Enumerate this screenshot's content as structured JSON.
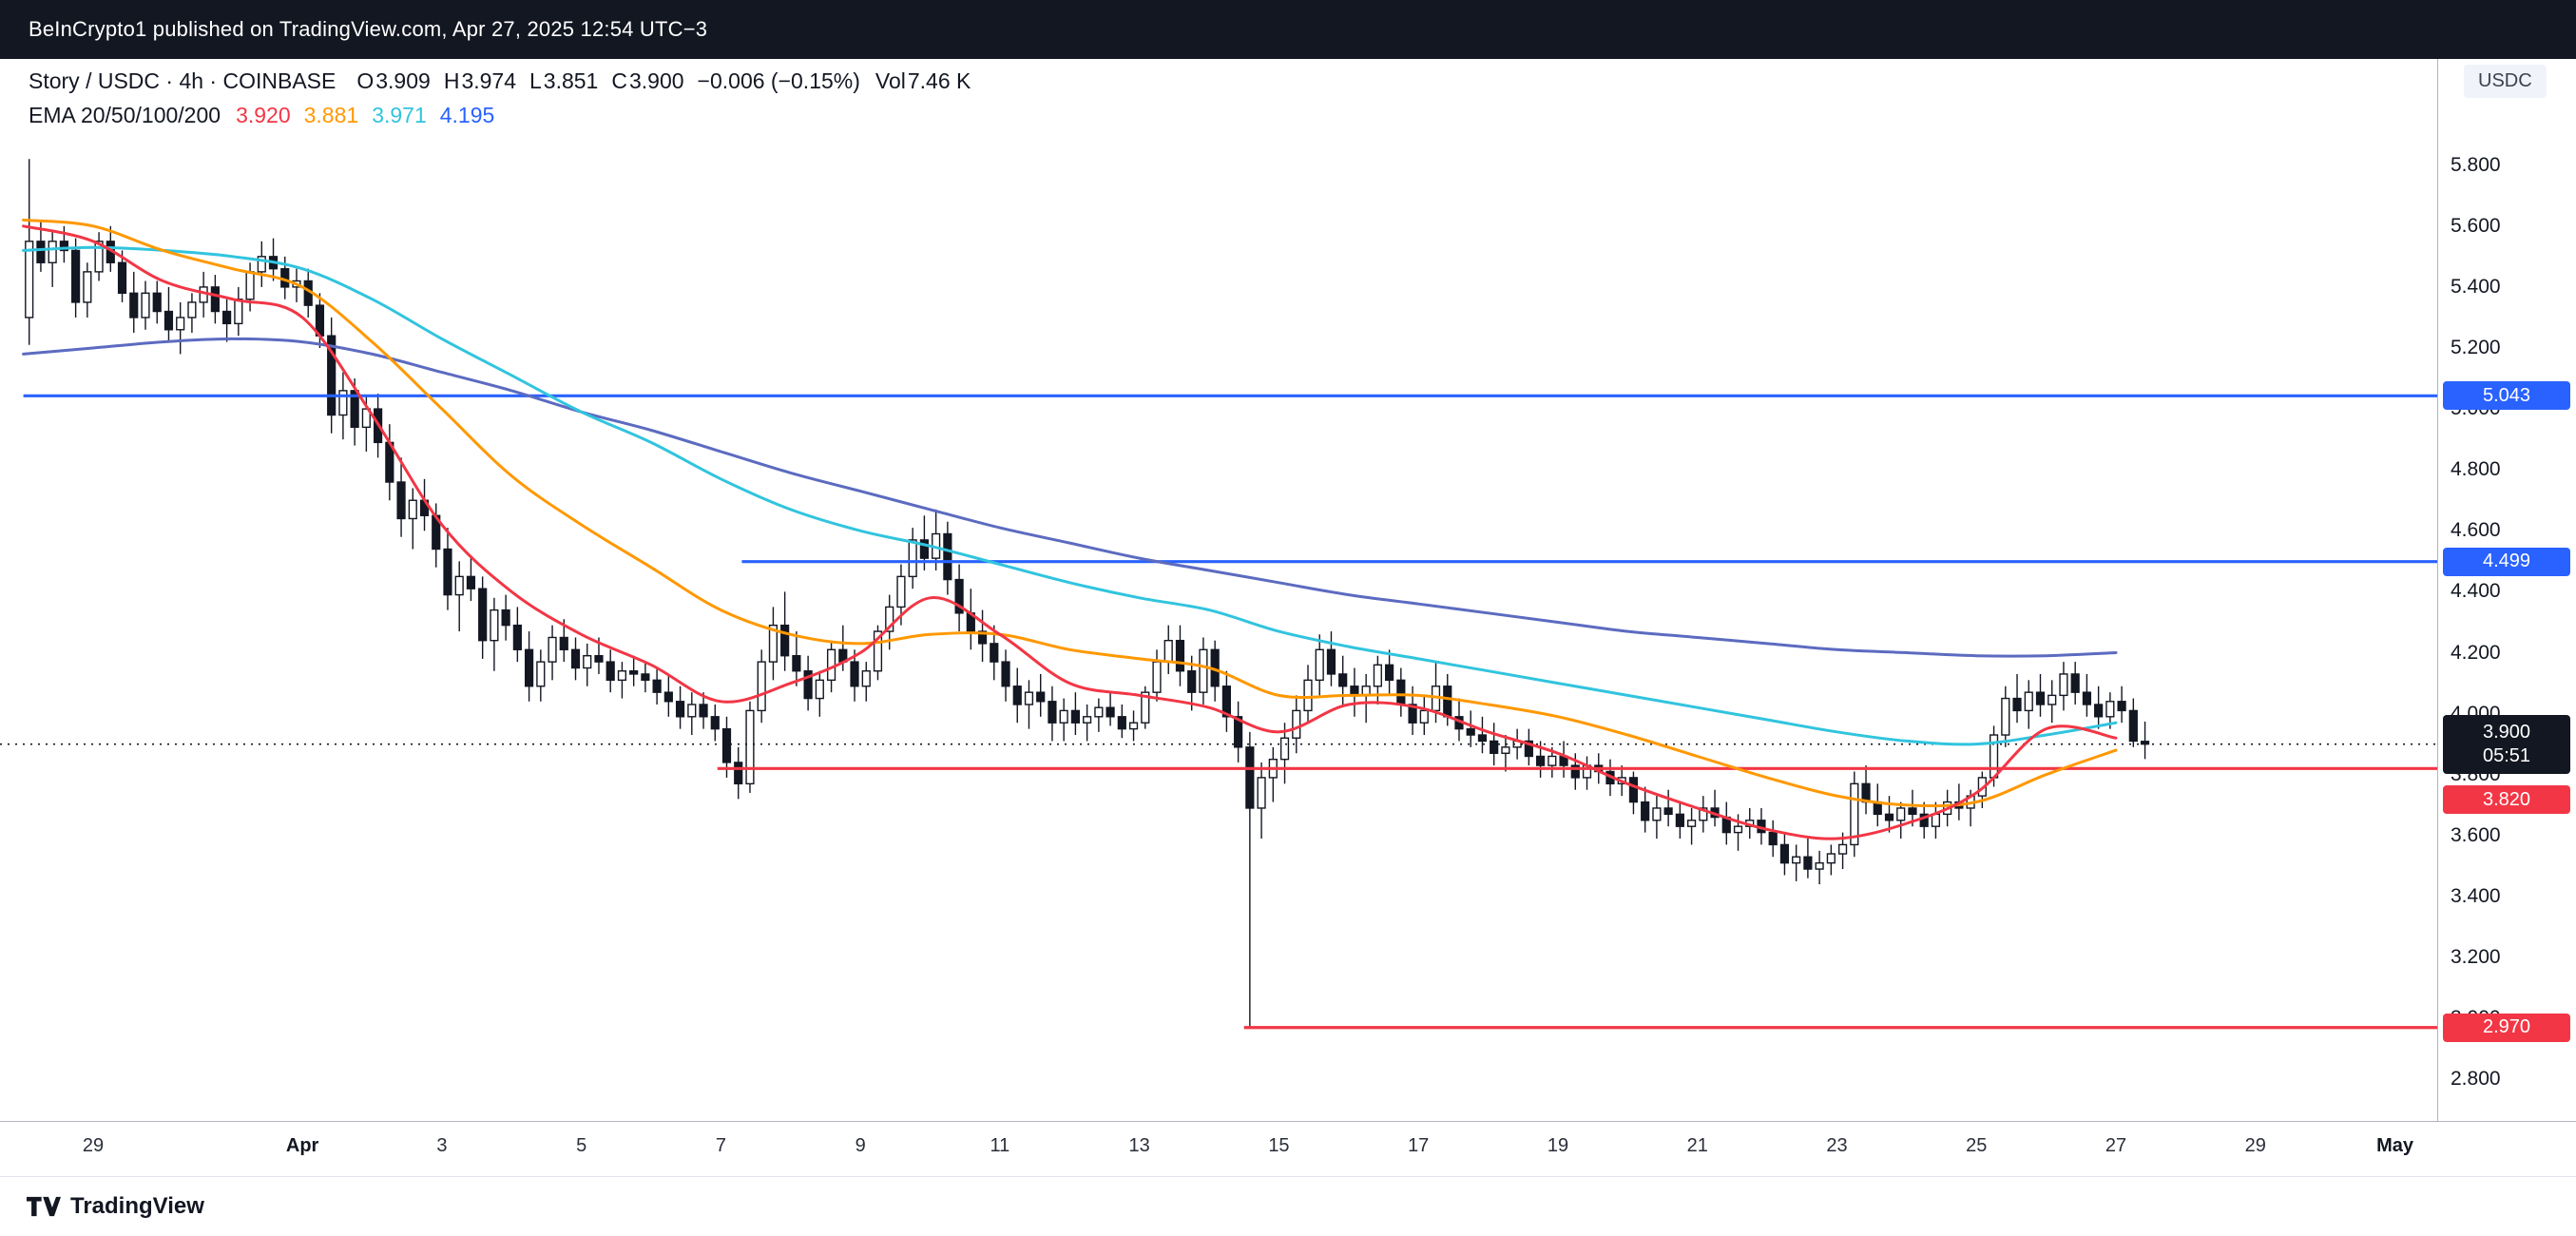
{
  "header": {
    "text": "BeInCrypto1 published on TradingView.com, Apr 27, 2025 12:54 UTC−3"
  },
  "legend": {
    "symbol": "Story / USDC · 4h · COINBASE",
    "open_label": "O",
    "open": "3.909",
    "high_label": "H",
    "high": "3.974",
    "low_label": "L",
    "low": "3.851",
    "close_label": "C",
    "close": "3.900",
    "change": "−0.006 (−0.15%)",
    "volume_label": "Vol",
    "volume": "7.46 K",
    "ema_label": "EMA 20/50/100/200",
    "ema_values": [
      {
        "text": "3.920",
        "color": "#F23645"
      },
      {
        "text": "3.881",
        "color": "#FF9800"
      },
      {
        "text": "3.971",
        "color": "#31C4DE"
      },
      {
        "text": "4.195",
        "color": "#2962FF"
      }
    ]
  },
  "currency_chip": "USDC",
  "price_axis": {
    "ticks": [
      "5.800",
      "5.600",
      "5.400",
      "5.200",
      "5.000",
      "4.800",
      "4.600",
      "4.400",
      "4.200",
      "4.000",
      "3.800",
      "3.600",
      "3.400",
      "3.200",
      "3.000",
      "2.800"
    ],
    "badges": [
      {
        "text": "5.043",
        "price": 5.043,
        "bg": "#2962FF"
      },
      {
        "text": "4.499",
        "price": 4.499,
        "bg": "#2962FF"
      },
      {
        "text": "3.900",
        "price": 3.9,
        "bg": "#131722",
        "countdown": "05:51"
      },
      {
        "text": "3.820",
        "price": 3.82,
        "bg": "#F23645",
        "shift": 33
      },
      {
        "text": "2.970",
        "price": 2.97,
        "bg": "#F23645"
      }
    ]
  },
  "time_axis": {
    "labels": [
      {
        "text": "29",
        "day": 1
      },
      {
        "text": "Apr",
        "day": 4,
        "bold": true
      },
      {
        "text": "3",
        "day": 6
      },
      {
        "text": "5",
        "day": 8
      },
      {
        "text": "7",
        "day": 10
      },
      {
        "text": "9",
        "day": 12
      },
      {
        "text": "11",
        "day": 14
      },
      {
        "text": "13",
        "day": 16
      },
      {
        "text": "15",
        "day": 18
      },
      {
        "text": "17",
        "day": 20
      },
      {
        "text": "19",
        "day": 22
      },
      {
        "text": "21",
        "day": 24
      },
      {
        "text": "23",
        "day": 26
      },
      {
        "text": "25",
        "day": 28
      },
      {
        "text": "27",
        "day": 30
      },
      {
        "text": "29",
        "day": 32
      },
      {
        "text": "May",
        "day": 34,
        "bold": true
      }
    ]
  },
  "footer": {
    "brand": "TradingView"
  },
  "chart_data": {
    "type": "candlestick",
    "symbol": "Story / USDC",
    "exchange": "COINBASE",
    "interval": "4h",
    "ylim": [
      2.8,
      5.8
    ],
    "start": "Mar 28 00:00",
    "interval_hours": 4,
    "current": {
      "open": 3.909,
      "high": 3.974,
      "low": 3.851,
      "close": 3.9,
      "change": -0.006,
      "change_pct": -0.15,
      "volume": "7.46 K",
      "countdown": "05:51"
    },
    "up_color": "#FFFFFF",
    "down_color": "#131722",
    "candles": [
      [
        5.3,
        5.82,
        5.21,
        5.55
      ],
      [
        5.55,
        5.62,
        5.45,
        5.48
      ],
      [
        5.48,
        5.58,
        5.4,
        5.55
      ],
      [
        5.55,
        5.6,
        5.48,
        5.52
      ],
      [
        5.52,
        5.56,
        5.3,
        5.35
      ],
      [
        5.35,
        5.48,
        5.3,
        5.45
      ],
      [
        5.45,
        5.58,
        5.42,
        5.55
      ],
      [
        5.55,
        5.6,
        5.45,
        5.48
      ],
      [
        5.48,
        5.52,
        5.35,
        5.38
      ],
      [
        5.38,
        5.45,
        5.25,
        5.3
      ],
      [
        5.3,
        5.42,
        5.26,
        5.38
      ],
      [
        5.38,
        5.42,
        5.28,
        5.32
      ],
      [
        5.32,
        5.4,
        5.22,
        5.26
      ],
      [
        5.26,
        5.35,
        5.18,
        5.3
      ],
      [
        5.3,
        5.38,
        5.25,
        5.35
      ],
      [
        5.35,
        5.45,
        5.3,
        5.4
      ],
      [
        5.4,
        5.44,
        5.28,
        5.32
      ],
      [
        5.32,
        5.36,
        5.22,
        5.28
      ],
      [
        5.28,
        5.4,
        5.24,
        5.36
      ],
      [
        5.36,
        5.48,
        5.32,
        5.45
      ],
      [
        5.45,
        5.55,
        5.4,
        5.5
      ],
      [
        5.5,
        5.56,
        5.42,
        5.46
      ],
      [
        5.46,
        5.5,
        5.36,
        5.4
      ],
      [
        5.4,
        5.46,
        5.35,
        5.42
      ],
      [
        5.42,
        5.46,
        5.3,
        5.34
      ],
      [
        5.34,
        5.38,
        5.2,
        5.24
      ],
      [
        5.24,
        5.3,
        4.92,
        4.98
      ],
      [
        4.98,
        5.12,
        4.9,
        5.06
      ],
      [
        5.06,
        5.1,
        4.88,
        4.94
      ],
      [
        4.94,
        5.04,
        4.86,
        5.0
      ],
      [
        5.0,
        5.05,
        4.84,
        4.89
      ],
      [
        4.89,
        4.95,
        4.7,
        4.76
      ],
      [
        4.76,
        4.84,
        4.58,
        4.64
      ],
      [
        4.64,
        4.74,
        4.54,
        4.7
      ],
      [
        4.7,
        4.77,
        4.6,
        4.65
      ],
      [
        4.65,
        4.69,
        4.48,
        4.54
      ],
      [
        4.54,
        4.61,
        4.34,
        4.39
      ],
      [
        4.39,
        4.5,
        4.27,
        4.45
      ],
      [
        4.45,
        4.52,
        4.37,
        4.41
      ],
      [
        4.41,
        4.45,
        4.18,
        4.24
      ],
      [
        4.24,
        4.38,
        4.14,
        4.34
      ],
      [
        4.34,
        4.39,
        4.24,
        4.29
      ],
      [
        4.29,
        4.35,
        4.17,
        4.21
      ],
      [
        4.21,
        4.27,
        4.04,
        4.09
      ],
      [
        4.09,
        4.21,
        4.04,
        4.17
      ],
      [
        4.17,
        4.29,
        4.11,
        4.25
      ],
      [
        4.25,
        4.31,
        4.17,
        4.21
      ],
      [
        4.21,
        4.25,
        4.11,
        4.15
      ],
      [
        4.15,
        4.23,
        4.09,
        4.19
      ],
      [
        4.19,
        4.25,
        4.13,
        4.17
      ],
      [
        4.17,
        4.21,
        4.07,
        4.11
      ],
      [
        4.11,
        4.17,
        4.05,
        4.14
      ],
      [
        4.14,
        4.19,
        4.09,
        4.13
      ],
      [
        4.13,
        4.17,
        4.07,
        4.11
      ],
      [
        4.11,
        4.15,
        4.03,
        4.07
      ],
      [
        4.07,
        4.13,
        3.99,
        4.04
      ],
      [
        4.04,
        4.09,
        3.95,
        3.99
      ],
      [
        3.99,
        4.07,
        3.93,
        4.03
      ],
      [
        4.03,
        4.07,
        3.95,
        3.99
      ],
      [
        3.99,
        4.03,
        3.91,
        3.95
      ],
      [
        3.95,
        3.99,
        3.79,
        3.84
      ],
      [
        3.84,
        3.89,
        3.72,
        3.77
      ],
      [
        3.77,
        4.04,
        3.74,
        4.01
      ],
      [
        4.01,
        4.21,
        3.97,
        4.17
      ],
      [
        4.17,
        4.35,
        4.11,
        4.29
      ],
      [
        4.29,
        4.4,
        4.14,
        4.19
      ],
      [
        4.19,
        4.27,
        4.09,
        4.14
      ],
      [
        4.14,
        4.19,
        4.01,
        4.05
      ],
      [
        4.05,
        4.14,
        3.99,
        4.11
      ],
      [
        4.11,
        4.24,
        4.07,
        4.21
      ],
      [
        4.21,
        4.29,
        4.14,
        4.17
      ],
      [
        4.17,
        4.21,
        4.04,
        4.09
      ],
      [
        4.09,
        4.17,
        4.04,
        4.14
      ],
      [
        4.14,
        4.29,
        4.11,
        4.27
      ],
      [
        4.27,
        4.39,
        4.21,
        4.35
      ],
      [
        4.35,
        4.49,
        4.29,
        4.45
      ],
      [
        4.45,
        4.61,
        4.41,
        4.57
      ],
      [
        4.57,
        4.65,
        4.47,
        4.51
      ],
      [
        4.51,
        4.67,
        4.47,
        4.59
      ],
      [
        4.59,
        4.63,
        4.39,
        4.44
      ],
      [
        4.44,
        4.49,
        4.27,
        4.33
      ],
      [
        4.33,
        4.41,
        4.21,
        4.27
      ],
      [
        4.27,
        4.34,
        4.17,
        4.23
      ],
      [
        4.23,
        4.29,
        4.11,
        4.17
      ],
      [
        4.17,
        4.21,
        4.04,
        4.09
      ],
      [
        4.09,
        4.15,
        3.97,
        4.03
      ],
      [
        4.03,
        4.11,
        3.95,
        4.07
      ],
      [
        4.07,
        4.13,
        3.99,
        4.04
      ],
      [
        4.04,
        4.09,
        3.91,
        3.97
      ],
      [
        3.97,
        4.05,
        3.91,
        4.01
      ],
      [
        4.01,
        4.07,
        3.93,
        3.97
      ],
      [
        3.97,
        4.03,
        3.91,
        3.99
      ],
      [
        3.99,
        4.05,
        3.94,
        4.02
      ],
      [
        4.02,
        4.07,
        3.96,
        3.99
      ],
      [
        3.99,
        4.03,
        3.92,
        3.95
      ],
      [
        3.95,
        4.01,
        3.91,
        3.97
      ],
      [
        3.97,
        4.09,
        3.95,
        4.07
      ],
      [
        4.07,
        4.21,
        4.04,
        4.17
      ],
      [
        4.17,
        4.29,
        4.13,
        4.24
      ],
      [
        4.24,
        4.29,
        4.09,
        4.14
      ],
      [
        4.14,
        4.19,
        4.01,
        4.07
      ],
      [
        4.07,
        4.25,
        4.03,
        4.21
      ],
      [
        4.21,
        4.24,
        4.04,
        4.09
      ],
      [
        4.09,
        4.14,
        3.94,
        3.99
      ],
      [
        3.99,
        4.04,
        3.84,
        3.89
      ],
      [
        3.89,
        3.94,
        2.97,
        3.69
      ],
      [
        3.69,
        3.84,
        3.59,
        3.79
      ],
      [
        3.79,
        3.89,
        3.71,
        3.85
      ],
      [
        3.85,
        3.97,
        3.77,
        3.92
      ],
      [
        3.92,
        4.06,
        3.87,
        4.01
      ],
      [
        4.01,
        4.16,
        3.97,
        4.11
      ],
      [
        4.11,
        4.26,
        4.06,
        4.21
      ],
      [
        4.21,
        4.27,
        4.09,
        4.13
      ],
      [
        4.13,
        4.19,
        4.03,
        4.09
      ],
      [
        4.09,
        4.15,
        3.99,
        4.06
      ],
      [
        4.06,
        4.13,
        3.97,
        4.09
      ],
      [
        4.09,
        4.19,
        4.03,
        4.16
      ],
      [
        4.16,
        4.21,
        4.06,
        4.11
      ],
      [
        4.11,
        4.15,
        3.99,
        4.03
      ],
      [
        4.03,
        4.09,
        3.93,
        3.97
      ],
      [
        3.97,
        4.06,
        3.93,
        4.01
      ],
      [
        4.01,
        4.17,
        3.97,
        4.09
      ],
      [
        4.09,
        4.13,
        3.96,
        3.99
      ],
      [
        3.99,
        4.05,
        3.91,
        3.95
      ],
      [
        3.95,
        4.01,
        3.89,
        3.93
      ],
      [
        3.93,
        3.99,
        3.87,
        3.91
      ],
      [
        3.91,
        3.97,
        3.83,
        3.87
      ],
      [
        3.87,
        3.93,
        3.81,
        3.89
      ],
      [
        3.89,
        3.95,
        3.85,
        3.91
      ],
      [
        3.91,
        3.95,
        3.83,
        3.86
      ],
      [
        3.86,
        3.91,
        3.79,
        3.83
      ],
      [
        3.83,
        3.89,
        3.79,
        3.86
      ],
      [
        3.86,
        3.91,
        3.79,
        3.83
      ],
      [
        3.83,
        3.87,
        3.75,
        3.79
      ],
      [
        3.79,
        3.86,
        3.75,
        3.83
      ],
      [
        3.83,
        3.87,
        3.77,
        3.81
      ],
      [
        3.81,
        3.85,
        3.73,
        3.77
      ],
      [
        3.77,
        3.83,
        3.73,
        3.79
      ],
      [
        3.79,
        3.81,
        3.67,
        3.71
      ],
      [
        3.71,
        3.76,
        3.61,
        3.65
      ],
      [
        3.65,
        3.73,
        3.59,
        3.69
      ],
      [
        3.69,
        3.75,
        3.63,
        3.67
      ],
      [
        3.67,
        3.71,
        3.59,
        3.63
      ],
      [
        3.63,
        3.69,
        3.57,
        3.65
      ],
      [
        3.65,
        3.73,
        3.61,
        3.69
      ],
      [
        3.69,
        3.75,
        3.63,
        3.66
      ],
      [
        3.66,
        3.71,
        3.57,
        3.61
      ],
      [
        3.61,
        3.67,
        3.55,
        3.63
      ],
      [
        3.63,
        3.69,
        3.59,
        3.65
      ],
      [
        3.65,
        3.69,
        3.57,
        3.61
      ],
      [
        3.61,
        3.65,
        3.53,
        3.57
      ],
      [
        3.57,
        3.61,
        3.47,
        3.51
      ],
      [
        3.51,
        3.57,
        3.45,
        3.53
      ],
      [
        3.53,
        3.59,
        3.46,
        3.49
      ],
      [
        3.49,
        3.55,
        3.44,
        3.51
      ],
      [
        3.51,
        3.57,
        3.47,
        3.54
      ],
      [
        3.54,
        3.61,
        3.49,
        3.57
      ],
      [
        3.57,
        3.81,
        3.53,
        3.77
      ],
      [
        3.77,
        3.83,
        3.67,
        3.71
      ],
      [
        3.71,
        3.77,
        3.63,
        3.67
      ],
      [
        3.67,
        3.73,
        3.61,
        3.65
      ],
      [
        3.65,
        3.71,
        3.59,
        3.69
      ],
      [
        3.69,
        3.75,
        3.63,
        3.67
      ],
      [
        3.67,
        3.71,
        3.59,
        3.63
      ],
      [
        3.63,
        3.71,
        3.59,
        3.67
      ],
      [
        3.67,
        3.75,
        3.63,
        3.71
      ],
      [
        3.71,
        3.77,
        3.65,
        3.69
      ],
      [
        3.69,
        3.75,
        3.63,
        3.73
      ],
      [
        3.73,
        3.81,
        3.69,
        3.79
      ],
      [
        3.79,
        3.96,
        3.76,
        3.93
      ],
      [
        3.93,
        4.09,
        3.89,
        4.05
      ],
      [
        4.05,
        4.13,
        3.97,
        4.01
      ],
      [
        4.01,
        4.11,
        3.95,
        4.07
      ],
      [
        4.07,
        4.13,
        3.99,
        4.03
      ],
      [
        4.03,
        4.11,
        3.97,
        4.06
      ],
      [
        4.06,
        4.17,
        4.01,
        4.13
      ],
      [
        4.13,
        4.17,
        4.03,
        4.07
      ],
      [
        4.07,
        4.13,
        3.99,
        4.03
      ],
      [
        4.03,
        4.09,
        3.95,
        3.99
      ],
      [
        3.99,
        4.07,
        3.95,
        4.04
      ],
      [
        4.04,
        4.09,
        3.97,
        4.01
      ],
      [
        4.01,
        4.05,
        3.89,
        3.91
      ],
      [
        3.909,
        3.974,
        3.851,
        3.9
      ]
    ],
    "emas": [
      {
        "name": "EMA 20",
        "period": 20,
        "color": "#F23645",
        "last": 3.92,
        "daily": [
          5.6,
          5.55,
          5.42,
          5.36,
          5.3,
          4.98,
          4.62,
          4.4,
          4.26,
          4.16,
          4.04,
          4.1,
          4.2,
          4.38,
          4.26,
          4.1,
          4.06,
          4.02,
          3.94,
          4.03,
          4.02,
          3.94,
          3.87,
          3.77,
          3.69,
          3.62,
          3.59,
          3.64,
          3.74,
          3.95,
          3.92
        ]
      },
      {
        "name": "EMA 50",
        "period": 50,
        "color": "#FF9800",
        "last": 3.881,
        "daily": [
          5.62,
          5.6,
          5.52,
          5.46,
          5.4,
          5.22,
          5.0,
          4.78,
          4.62,
          4.48,
          4.34,
          4.26,
          4.23,
          4.26,
          4.26,
          4.21,
          4.18,
          4.15,
          4.06,
          4.06,
          4.06,
          4.03,
          3.99,
          3.93,
          3.86,
          3.79,
          3.73,
          3.7,
          3.71,
          3.8,
          3.88
        ]
      },
      {
        "name": "EMA 100",
        "period": 100,
        "color": "#31C4DE",
        "last": 3.971,
        "daily": [
          5.52,
          5.53,
          5.52,
          5.5,
          5.46,
          5.36,
          5.23,
          5.11,
          4.99,
          4.89,
          4.77,
          4.67,
          4.6,
          4.55,
          4.49,
          4.43,
          4.38,
          4.34,
          4.27,
          4.22,
          4.18,
          4.14,
          4.1,
          4.06,
          4.02,
          3.98,
          3.94,
          3.91,
          3.9,
          3.93,
          3.97
        ]
      },
      {
        "name": "EMA 200",
        "period": 200,
        "color": "#5C6BC0",
        "last": 4.195,
        "daily": [
          5.18,
          5.2,
          5.22,
          5.23,
          5.22,
          5.18,
          5.12,
          5.06,
          4.99,
          4.93,
          4.86,
          4.79,
          4.73,
          4.67,
          4.61,
          4.56,
          4.51,
          4.47,
          4.43,
          4.39,
          4.36,
          4.33,
          4.3,
          4.27,
          4.25,
          4.23,
          4.21,
          4.2,
          4.19,
          4.19,
          4.2
        ]
      }
    ],
    "levels": [
      {
        "price": 5.043,
        "color": "#2962FF",
        "start_day": 0
      },
      {
        "price": 4.499,
        "color": "#2962FF",
        "start_day": 10.3
      },
      {
        "price": 3.82,
        "color": "#F23645",
        "start_day": 9.95
      },
      {
        "price": 2.97,
        "color": "#F23645",
        "start_day": 17.5
      }
    ],
    "current_price_line": 3.9
  }
}
